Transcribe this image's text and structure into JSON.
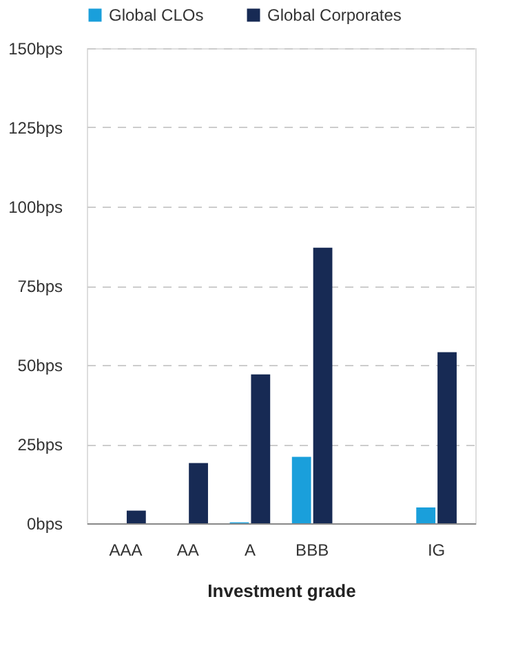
{
  "chart_data": {
    "type": "bar",
    "xlabel": "Investment grade",
    "categories": [
      "AAA",
      "AA",
      "A",
      "BBB",
      null,
      "IG"
    ],
    "series": [
      {
        "name": "Global CLOs",
        "color": "#1a9fdb",
        "values": [
          0,
          0,
          0.3,
          21,
          null,
          5
        ]
      },
      {
        "name": "Global Corporates",
        "color": "#172a54",
        "values": [
          4,
          19,
          47,
          87,
          null,
          54
        ]
      }
    ],
    "ylim": [
      0,
      150
    ],
    "yticks": [
      {
        "value": 0,
        "label": "0bps"
      },
      {
        "value": 25,
        "label": "25bps"
      },
      {
        "value": 50,
        "label": "50bps"
      },
      {
        "value": 75,
        "label": "75bps"
      },
      {
        "value": 100,
        "label": "100bps"
      },
      {
        "value": 125,
        "label": "125bps"
      },
      {
        "value": 150,
        "label": "150bps"
      }
    ],
    "grid": "y",
    "legend": "top"
  }
}
